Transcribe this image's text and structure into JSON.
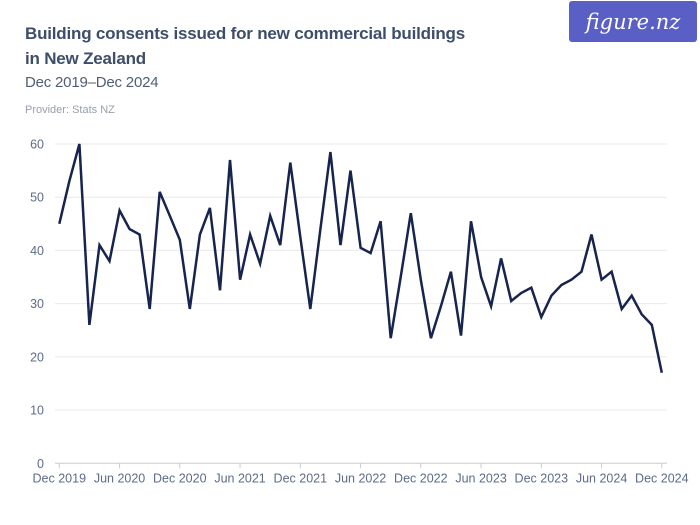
{
  "header": {
    "title_line1": "Building consents issued for new commercial buildings",
    "title_line2": "in New Zealand",
    "subtitle": "Dec 2019–Dec 2024",
    "provider": "Provider: Stats NZ"
  },
  "logo": {
    "text": "figure.nz",
    "bg_color": "#5a5fc6",
    "text_color": "#ffffff"
  },
  "chart_data": {
    "type": "line",
    "title": "Building consents issued for new commercial buildings in New Zealand",
    "subtitle": "Dec 2019–Dec 2024",
    "provider": "Stats NZ",
    "x": [
      "Dec 2019",
      "Jan 2020",
      "Feb 2020",
      "Mar 2020",
      "Apr 2020",
      "May 2020",
      "Jun 2020",
      "Jul 2020",
      "Aug 2020",
      "Sep 2020",
      "Oct 2020",
      "Nov 2020",
      "Dec 2020",
      "Jan 2021",
      "Feb 2021",
      "Mar 2021",
      "Apr 2021",
      "May 2021",
      "Jun 2021",
      "Jul 2021",
      "Aug 2021",
      "Sep 2021",
      "Oct 2021",
      "Nov 2021",
      "Dec 2021",
      "Jan 2022",
      "Feb 2022",
      "Mar 2022",
      "Apr 2022",
      "May 2022",
      "Jun 2022",
      "Jul 2022",
      "Aug 2022",
      "Sep 2022",
      "Oct 2022",
      "Nov 2022",
      "Dec 2022",
      "Jan 2023",
      "Feb 2023",
      "Mar 2023",
      "Apr 2023",
      "May 2023",
      "Jun 2023",
      "Jul 2023",
      "Aug 2023",
      "Sep 2023",
      "Oct 2023",
      "Nov 2023",
      "Dec 2023",
      "Jan 2024",
      "Feb 2024",
      "Mar 2024",
      "Apr 2024",
      "May 2024",
      "Jun 2024",
      "Jul 2024",
      "Aug 2024",
      "Sep 2024",
      "Oct 2024",
      "Nov 2024",
      "Dec 2024"
    ],
    "values": [
      45,
      53,
      60,
      26,
      41,
      38,
      47.5,
      44,
      43,
      29,
      51,
      46.5,
      42,
      29,
      43,
      48,
      32.5,
      57,
      34.5,
      43,
      37.5,
      46.5,
      41,
      56.5,
      42.5,
      29,
      44,
      58.5,
      41,
      55,
      40.5,
      39.5,
      45.5,
      23.5,
      35,
      47,
      34.5,
      23.5,
      29.5,
      36,
      24,
      45.5,
      35,
      29.5,
      38.5,
      30.5,
      32,
      33,
      27.5,
      31.5,
      33.5,
      34.5,
      36,
      43,
      34.5,
      36,
      29,
      31.5,
      28,
      26,
      17
    ],
    "ylim": [
      0,
      60
    ],
    "yticks": [
      0,
      10,
      20,
      30,
      40,
      50,
      60
    ],
    "xtick_every": 6,
    "xtick_labels": [
      "Dec 2019",
      "Jun 2020",
      "Dec 2020",
      "Jun 2021",
      "Dec 2021",
      "Jun 2022",
      "Dec 2022",
      "Jun 2023",
      "Dec 2023",
      "Jun 2024",
      "Dec 2024"
    ],
    "grid": true,
    "legend": "none",
    "line_color": "#16244e",
    "grid_color": "#e9e9ed",
    "axis_color": "#c9cdd7",
    "label_color": "#5d6c87"
  }
}
